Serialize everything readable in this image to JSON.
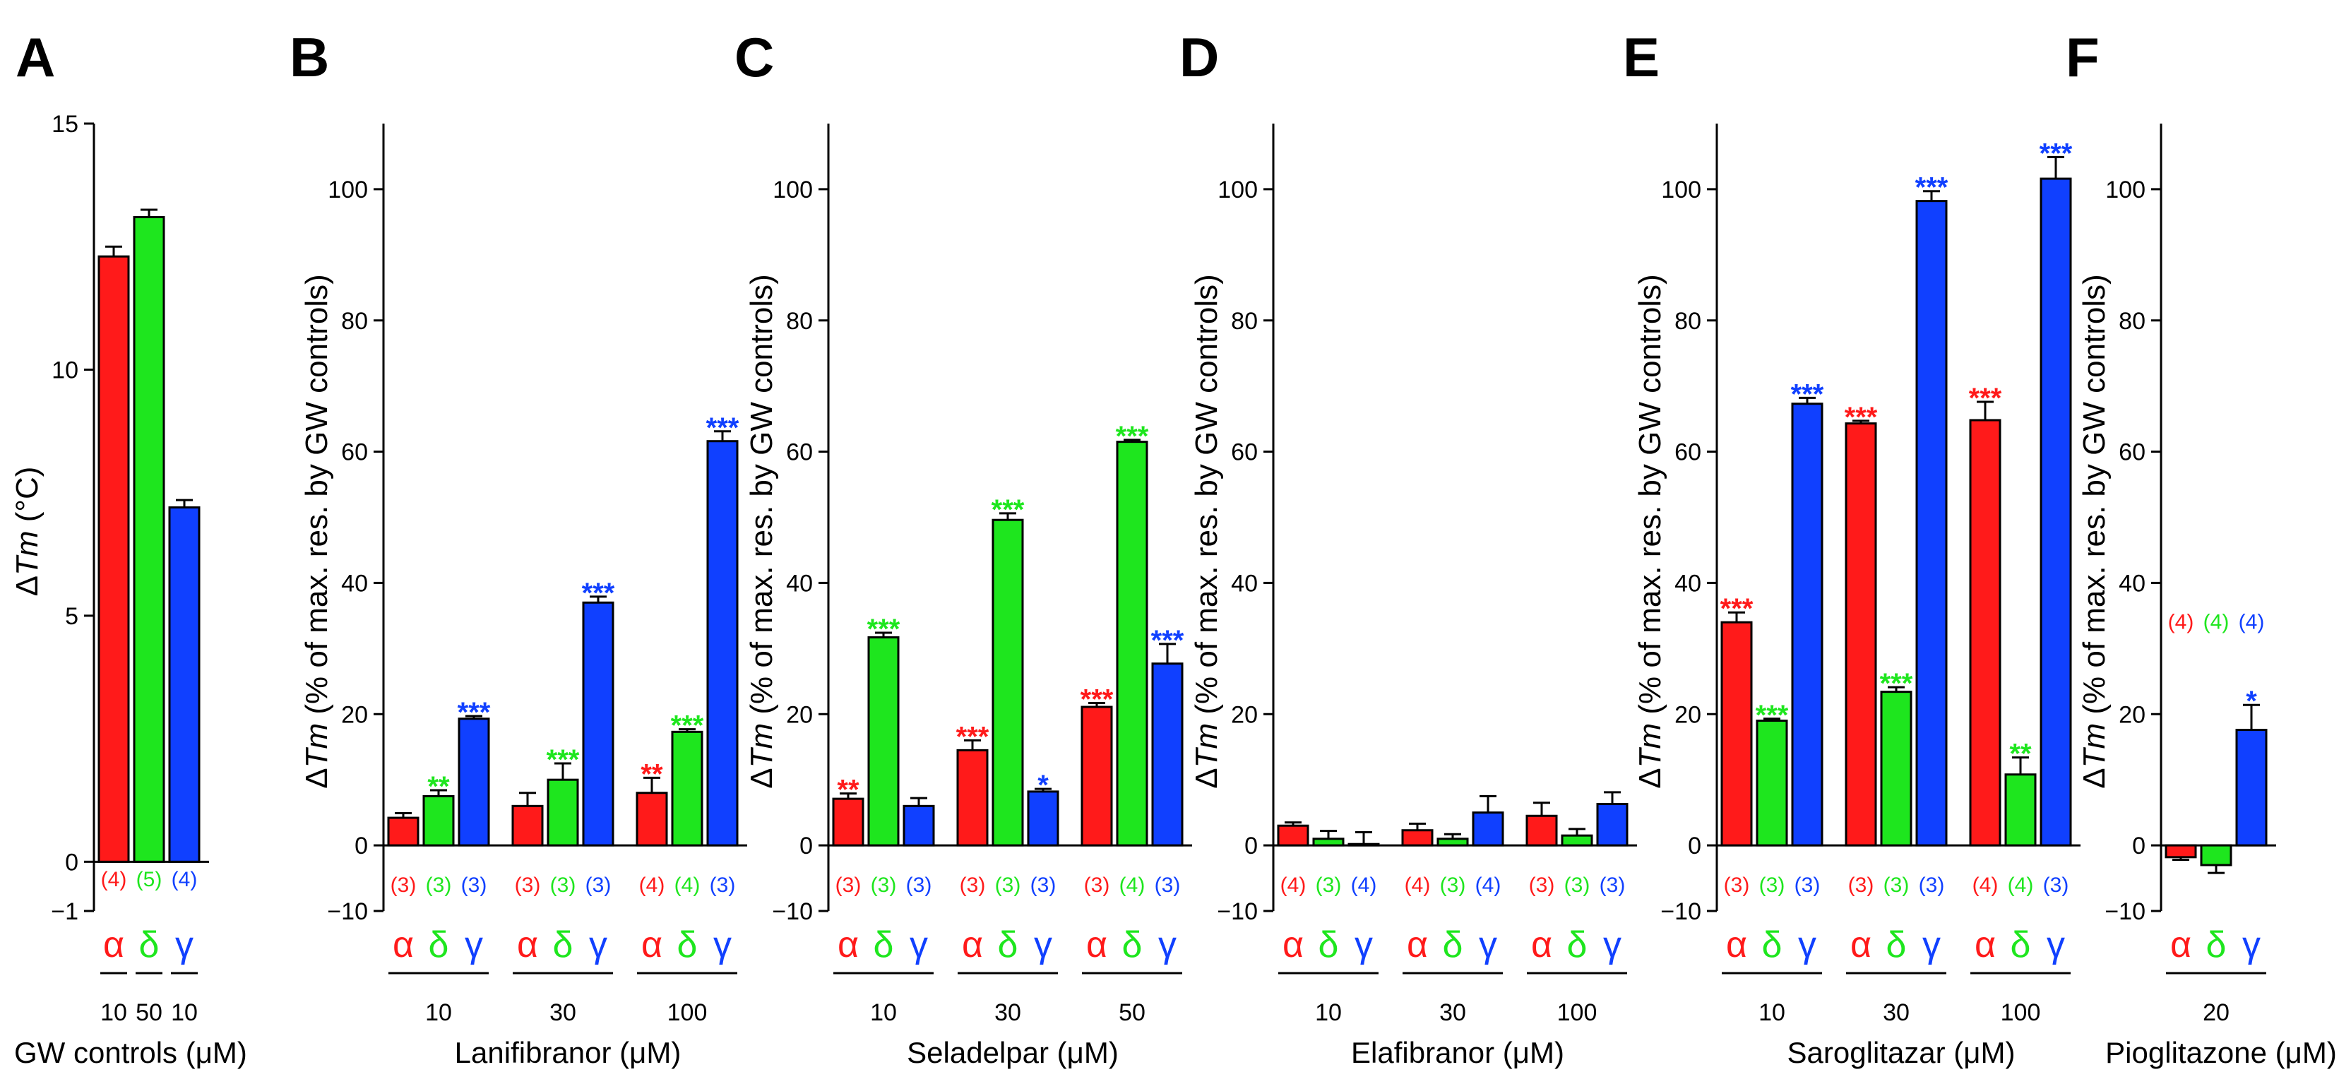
{
  "colors": {
    "alpha": "#ff1a1a",
    "delta": "#1ee61e",
    "gamma": "#1040ff",
    "axis": "#000000",
    "edge": "#000000"
  },
  "receptor_symbols": {
    "alpha": "α",
    "delta": "δ",
    "gamma": "γ"
  },
  "chart_data": [
    {
      "panel": "A",
      "type": "bar",
      "ylabel_prefix": "Δ",
      "ylabel_italic": "Tm",
      "ylabel_suffix": " (°C)",
      "xlabel": "GW controls (μM)",
      "ylim": [
        -1,
        15
      ],
      "yticks": [
        -1,
        0,
        5,
        10,
        15
      ],
      "groups": [
        {
          "bars": [
            {
              "receptor": "alpha",
              "value": 12.3,
              "error": 0.2,
              "n": "(4)",
              "conc": "10"
            },
            {
              "receptor": "delta",
              "value": 13.1,
              "error": 0.15,
              "n": "(5)",
              "conc": "50"
            },
            {
              "receptor": "gamma",
              "value": 7.2,
              "error": 0.15,
              "n": "(4)",
              "conc": "10"
            }
          ]
        }
      ]
    },
    {
      "panel": "B",
      "type": "bar",
      "ylabel_prefix": "Δ",
      "ylabel_italic": "Tm",
      "ylabel_suffix": " (% of max. res. by GW controls)",
      "xlabel": "Lanifibranor (μM)",
      "ylim": [
        -10,
        110
      ],
      "yticks": [
        -10,
        0,
        20,
        40,
        60,
        80,
        100
      ],
      "groups": [
        {
          "label": "10",
          "bars": [
            {
              "receptor": "alpha",
              "value": 4.2,
              "error": 0.7,
              "n": "(3)",
              "sig": ""
            },
            {
              "receptor": "delta",
              "value": 7.5,
              "error": 0.9,
              "n": "(3)",
              "sig": "**"
            },
            {
              "receptor": "gamma",
              "value": 19.3,
              "error": 0.4,
              "n": "(3)",
              "sig": "***"
            }
          ]
        },
        {
          "label": "30",
          "bars": [
            {
              "receptor": "alpha",
              "value": 6.0,
              "error": 2.0,
              "n": "(3)",
              "sig": ""
            },
            {
              "receptor": "delta",
              "value": 10.0,
              "error": 2.5,
              "n": "(3)",
              "sig": "***"
            },
            {
              "receptor": "gamma",
              "value": 37.0,
              "error": 0.9,
              "n": "(3)",
              "sig": "***"
            }
          ]
        },
        {
          "label": "100",
          "bars": [
            {
              "receptor": "alpha",
              "value": 8.0,
              "error": 2.3,
              "n": "(4)",
              "sig": "**"
            },
            {
              "receptor": "delta",
              "value": 17.3,
              "error": 0.4,
              "n": "(4)",
              "sig": "***"
            },
            {
              "receptor": "gamma",
              "value": 61.6,
              "error": 1.5,
              "n": "(3)",
              "sig": "***"
            }
          ]
        }
      ]
    },
    {
      "panel": "C",
      "type": "bar",
      "ylabel_prefix": "Δ",
      "ylabel_italic": "Tm",
      "ylabel_suffix": " (% of max. res. by GW controls)",
      "xlabel": "Seladelpar (μM)",
      "ylim": [
        -10,
        110
      ],
      "yticks": [
        -10,
        0,
        20,
        40,
        60,
        80,
        100
      ],
      "groups": [
        {
          "label": "10",
          "bars": [
            {
              "receptor": "alpha",
              "value": 7.1,
              "error": 0.8,
              "n": "(3)",
              "sig": "**"
            },
            {
              "receptor": "delta",
              "value": 31.7,
              "error": 0.7,
              "n": "(3)",
              "sig": "***"
            },
            {
              "receptor": "gamma",
              "value": 6.0,
              "error": 1.2,
              "n": "(3)",
              "sig": ""
            }
          ]
        },
        {
          "label": "30",
          "bars": [
            {
              "receptor": "alpha",
              "value": 14.5,
              "error": 1.5,
              "n": "(3)",
              "sig": "***"
            },
            {
              "receptor": "delta",
              "value": 49.6,
              "error": 1.0,
              "n": "(3)",
              "sig": "***"
            },
            {
              "receptor": "gamma",
              "value": 8.2,
              "error": 0.4,
              "n": "(3)",
              "sig": "*"
            }
          ]
        },
        {
          "label": "50",
          "bars": [
            {
              "receptor": "alpha",
              "value": 21.1,
              "error": 0.6,
              "n": "(3)",
              "sig": "***"
            },
            {
              "receptor": "delta",
              "value": 61.5,
              "error": 0.3,
              "n": "(4)",
              "sig": "***"
            },
            {
              "receptor": "gamma",
              "value": 27.7,
              "error": 3.0,
              "n": "(3)",
              "sig": "***"
            }
          ]
        }
      ]
    },
    {
      "panel": "D",
      "type": "bar",
      "ylabel_prefix": "Δ",
      "ylabel_italic": "Tm",
      "ylabel_suffix": " (% of max. res. by GW controls)",
      "xlabel": "Elafibranor (μM)",
      "ylim": [
        -10,
        110
      ],
      "yticks": [
        -10,
        0,
        20,
        40,
        60,
        80,
        100
      ],
      "groups": [
        {
          "label": "10",
          "bars": [
            {
              "receptor": "alpha",
              "value": 3.0,
              "error": 0.5,
              "n": "(4)",
              "sig": ""
            },
            {
              "receptor": "delta",
              "value": 1.0,
              "error": 1.2,
              "n": "(3)",
              "sig": ""
            },
            {
              "receptor": "gamma",
              "value": 0.2,
              "error": 1.8,
              "n": "(4)",
              "sig": ""
            }
          ]
        },
        {
          "label": "30",
          "bars": [
            {
              "receptor": "alpha",
              "value": 2.3,
              "error": 1.0,
              "n": "(4)",
              "sig": ""
            },
            {
              "receptor": "delta",
              "value": 1.0,
              "error": 0.7,
              "n": "(3)",
              "sig": ""
            },
            {
              "receptor": "gamma",
              "value": 5.0,
              "error": 2.5,
              "n": "(4)",
              "sig": ""
            }
          ]
        },
        {
          "label": "100",
          "bars": [
            {
              "receptor": "alpha",
              "value": 4.5,
              "error": 2.0,
              "n": "(3)",
              "sig": ""
            },
            {
              "receptor": "delta",
              "value": 1.5,
              "error": 1.0,
              "n": "(3)",
              "sig": ""
            },
            {
              "receptor": "gamma",
              "value": 6.3,
              "error": 1.8,
              "n": "(3)",
              "sig": ""
            }
          ]
        }
      ]
    },
    {
      "panel": "E",
      "type": "bar",
      "ylabel_prefix": "Δ",
      "ylabel_italic": "Tm",
      "ylabel_suffix": " (% of max. res. by GW controls)",
      "xlabel": "Saroglitazar (μM)",
      "ylim": [
        -10,
        110
      ],
      "yticks": [
        -10,
        0,
        20,
        40,
        60,
        80,
        100
      ],
      "groups": [
        {
          "label": "10",
          "bars": [
            {
              "receptor": "alpha",
              "value": 34.0,
              "error": 1.5,
              "n": "(3)",
              "sig": "***"
            },
            {
              "receptor": "delta",
              "value": 19.0,
              "error": 0.3,
              "n": "(3)",
              "sig": "***"
            },
            {
              "receptor": "gamma",
              "value": 67.3,
              "error": 0.9,
              "n": "(3)",
              "sig": "***"
            }
          ]
        },
        {
          "label": "30",
          "bars": [
            {
              "receptor": "alpha",
              "value": 64.3,
              "error": 0.4,
              "n": "(3)",
              "sig": "***"
            },
            {
              "receptor": "delta",
              "value": 23.4,
              "error": 0.7,
              "n": "(3)",
              "sig": "***"
            },
            {
              "receptor": "gamma",
              "value": 98.2,
              "error": 1.5,
              "n": "(3)",
              "sig": "***"
            }
          ]
        },
        {
          "label": "100",
          "bars": [
            {
              "receptor": "alpha",
              "value": 64.8,
              "error": 2.8,
              "n": "(4)",
              "sig": "***"
            },
            {
              "receptor": "delta",
              "value": 10.8,
              "error": 2.6,
              "n": "(4)",
              "sig": "**"
            },
            {
              "receptor": "gamma",
              "value": 101.6,
              "error": 3.3,
              "n": "(3)",
              "sig": "***"
            }
          ]
        }
      ]
    },
    {
      "panel": "F",
      "type": "bar",
      "ylabel_prefix": "Δ",
      "ylabel_italic": "Tm",
      "ylabel_suffix": " (% of max. res. by GW controls)",
      "xlabel": "Pioglitazone (μM)",
      "ylim": [
        -10,
        110
      ],
      "yticks": [
        -10,
        0,
        20,
        40,
        60,
        80,
        100
      ],
      "n_position": "raised",
      "groups": [
        {
          "label": "20",
          "bars": [
            {
              "receptor": "alpha",
              "value": -1.8,
              "error": 0.4,
              "n": "(4)",
              "sig": ""
            },
            {
              "receptor": "delta",
              "value": -3.0,
              "error": 1.2,
              "n": "(4)",
              "sig": ""
            },
            {
              "receptor": "gamma",
              "value": 17.6,
              "error": 3.8,
              "n": "(4)",
              "sig": "*"
            }
          ]
        }
      ]
    }
  ]
}
